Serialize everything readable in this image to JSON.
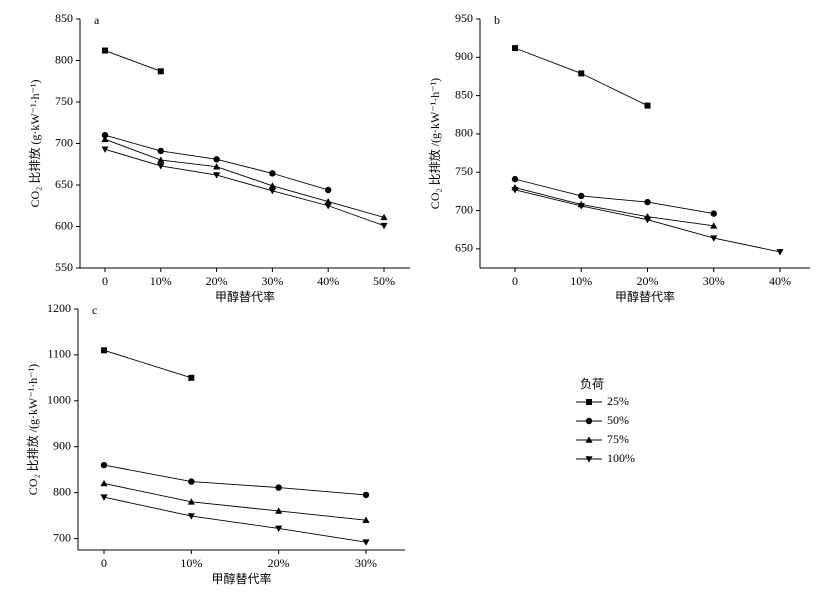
{
  "chart_data": [
    {
      "type": "line",
      "title": "a",
      "ylabel": "CO₂ 比排放 (g·kW⁻¹·h⁻¹)",
      "xlabel": "甲醇替代率",
      "categories": [
        "0",
        "10%",
        "20%",
        "30%",
        "40%",
        "50%"
      ],
      "ylim": [
        550,
        850
      ],
      "yticks": [
        550,
        600,
        650,
        700,
        750,
        800,
        850
      ],
      "series": [
        {
          "marker": "square",
          "color": "#000000",
          "values": [
            812,
            787,
            null,
            null,
            null,
            null
          ]
        },
        {
          "marker": "circle",
          "color": "#000000",
          "values": [
            710,
            691,
            681,
            664,
            644,
            null
          ]
        },
        {
          "marker": "triangle-up",
          "color": "#000000",
          "values": [
            705,
            680,
            672,
            649,
            630,
            611
          ]
        },
        {
          "marker": "triangle-down",
          "color": "#000000",
          "values": [
            693,
            673,
            662,
            643,
            625,
            601
          ]
        }
      ]
    },
    {
      "type": "line",
      "title": "b",
      "ylabel": "CO₂ 比排放 /(g·kW⁻¹·h⁻¹)",
      "xlabel": "甲醇替代率",
      "categories": [
        "0",
        "10%",
        "20%",
        "30%",
        "40%"
      ],
      "ylim": [
        625,
        950
      ],
      "yticks": [
        650,
        700,
        750,
        800,
        850,
        900,
        950
      ],
      "series": [
        {
          "marker": "square",
          "color": "#000000",
          "values": [
            912,
            879,
            837,
            null,
            null
          ]
        },
        {
          "marker": "circle",
          "color": "#000000",
          "values": [
            741,
            719,
            711,
            696,
            null
          ]
        },
        {
          "marker": "triangle-up",
          "color": "#000000",
          "values": [
            730,
            708,
            692,
            680,
            null
          ]
        },
        {
          "marker": "triangle-down",
          "color": "#000000",
          "values": [
            727,
            706,
            688,
            664,
            646
          ]
        }
      ]
    },
    {
      "type": "line",
      "title": "c",
      "ylabel": "CO₂ 比排放 /(g·kW⁻¹·h⁻¹)",
      "xlabel": "甲醇替代率",
      "categories": [
        "0",
        "10%",
        "20%",
        "30%"
      ],
      "ylim": [
        675,
        1200
      ],
      "yticks": [
        700,
        800,
        900,
        1000,
        1100,
        1200
      ],
      "legend_title": "负荷",
      "series": [
        {
          "name": "25%",
          "marker": "square",
          "color": "#000000",
          "values": [
            1110,
            1050,
            null,
            null
          ]
        },
        {
          "name": "50%",
          "marker": "circle",
          "color": "#000000",
          "values": [
            860,
            824,
            811,
            795
          ]
        },
        {
          "name": "75%",
          "marker": "triangle-up",
          "color": "#000000",
          "values": [
            820,
            780,
            760,
            740
          ]
        },
        {
          "name": "100%",
          "marker": "triangle-down",
          "color": "#000000",
          "values": [
            790,
            749,
            722,
            692
          ]
        }
      ]
    }
  ]
}
